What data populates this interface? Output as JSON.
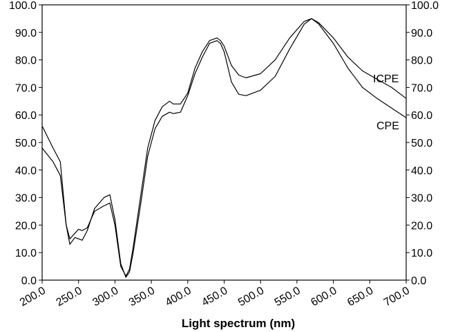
{
  "chart_data": {
    "type": "line",
    "title": "",
    "xlabel": "Light spectrum (nm)",
    "ylabel": "",
    "xlim": [
      200,
      700
    ],
    "ylim": [
      0,
      100
    ],
    "x_ticks": [
      "200.0",
      "250.0",
      "300.0",
      "350.0",
      "400.0",
      "450.0",
      "500.0",
      "550.0",
      "600.0",
      "650.0",
      "700.0"
    ],
    "y_ticks": [
      "0.0",
      "10.0",
      "20.0",
      "30.0",
      "40.0",
      "50.0",
      "60.0",
      "70.0",
      "80.0",
      "90.0",
      "100.0"
    ],
    "grid": false,
    "legend": "none",
    "series": [
      {
        "name": "ICPE",
        "color": "#000000",
        "x": [
          200,
          215,
          225,
          233,
          238,
          245,
          250,
          255,
          262,
          272,
          285,
          293,
          300,
          308,
          315,
          320,
          325,
          335,
          345,
          355,
          365,
          375,
          380,
          390,
          400,
          410,
          420,
          430,
          440,
          445,
          450,
          460,
          470,
          480,
          500,
          520,
          540,
          560,
          570,
          580,
          600,
          620,
          640,
          660,
          680,
          700
        ],
        "y": [
          48,
          43,
          38,
          20,
          15,
          17,
          18.5,
          18,
          19,
          25,
          27,
          28,
          20,
          5,
          1.5,
          4,
          12,
          30,
          48,
          58,
          63,
          65,
          64,
          64,
          68,
          77,
          83,
          87,
          88,
          87,
          85,
          78,
          74.5,
          73.5,
          75,
          80,
          88,
          94,
          95,
          93.5,
          88,
          81,
          76,
          73,
          70,
          66
        ]
      },
      {
        "name": "CPE",
        "color": "#000000",
        "x": [
          200,
          215,
          225,
          233,
          238,
          245,
          250,
          255,
          262,
          272,
          285,
          293,
          300,
          308,
          315,
          320,
          325,
          335,
          345,
          355,
          365,
          375,
          380,
          390,
          400,
          410,
          420,
          430,
          440,
          445,
          450,
          460,
          470,
          480,
          500,
          520,
          540,
          560,
          570,
          580,
          600,
          620,
          640,
          660,
          680,
          700
        ],
        "y": [
          56,
          48,
          43,
          20,
          13,
          15.5,
          15,
          14.5,
          18,
          26,
          30,
          31,
          22,
          6,
          1,
          3,
          10,
          27,
          45,
          55,
          59.5,
          61,
          60.5,
          61,
          67,
          75,
          81,
          86,
          87,
          86,
          83,
          72,
          67.5,
          67,
          69,
          74,
          84,
          93,
          95,
          93,
          86,
          77,
          70,
          66,
          62.5,
          59
        ]
      }
    ]
  }
}
